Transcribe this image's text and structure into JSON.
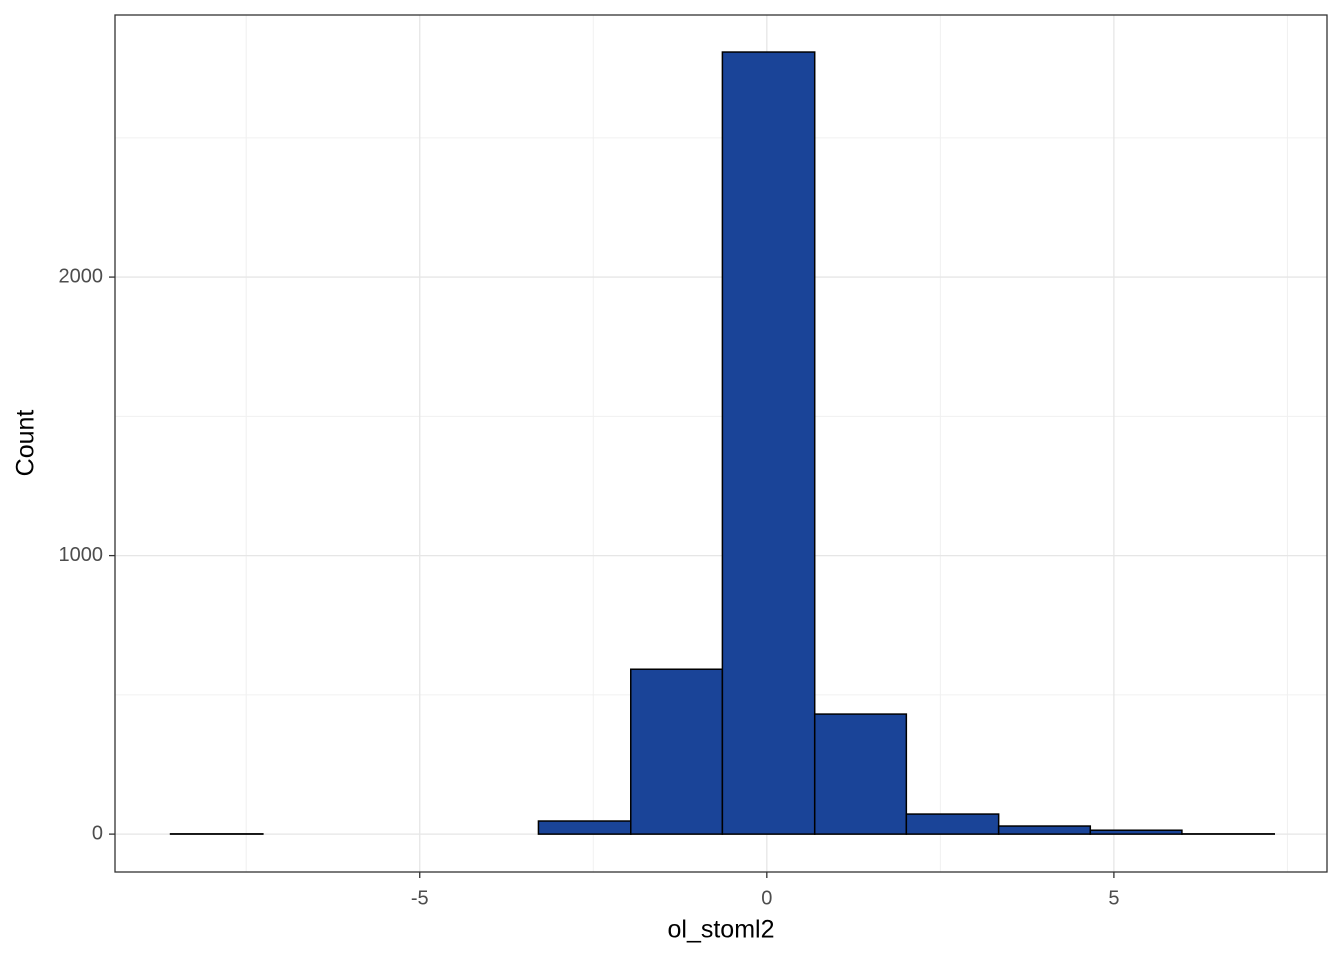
{
  "chart_data": {
    "type": "histogram",
    "x_label": "ol_stoml2",
    "y_label": "Count",
    "bins": [
      -8.59,
      -7.26,
      -5.94,
      -4.61,
      -3.29,
      -1.96,
      -0.64,
      0.69,
      2.01,
      3.34,
      4.66,
      5.98,
      7.31
    ],
    "values": [
      1,
      0,
      0,
      0,
      47,
      592,
      2808,
      431,
      72,
      29,
      14,
      1
    ],
    "color": "#1a4498",
    "xlim": [
      -9.39,
      8.07
    ],
    "ylim": [
      -136,
      2941
    ],
    "xticks": [
      -5,
      0,
      5
    ],
    "yticks": [
      0,
      1000,
      2000
    ],
    "xminor": [
      -7.5,
      -2.5,
      2.5,
      7.5
    ],
    "yminor": [
      500,
      1500,
      2500
    ],
    "grid": true
  }
}
